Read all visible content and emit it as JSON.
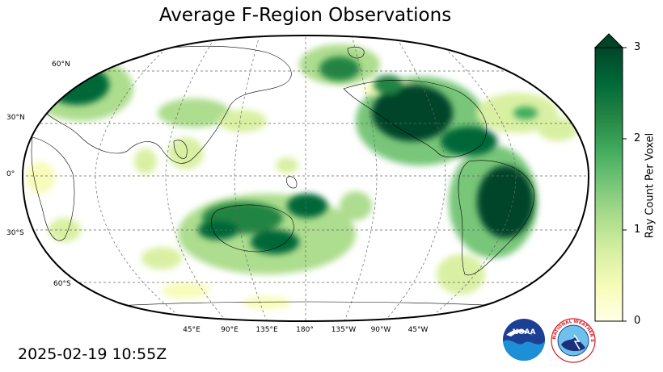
{
  "title": "Average F-Region Observations",
  "timestamp": "2025-02-19 10:55Z",
  "map": {
    "projection": "Robinson, Pacific-centered",
    "lat_labels": [
      "60°N",
      "30°N",
      "0°",
      "30°S",
      "60°S"
    ],
    "lon_labels": [
      "45°E",
      "90°E",
      "135°E",
      "180°",
      "135°W",
      "90°W",
      "45°W"
    ],
    "gridlines": true
  },
  "colorbar": {
    "label": "Ray Count Per Voxel",
    "ticks": [
      "0",
      "1",
      "2",
      "3"
    ],
    "range": [
      0,
      3
    ],
    "extend": "max",
    "colormap": "YlGn",
    "colors": [
      "#ffffe5",
      "#f7fcb9",
      "#d9f0a3",
      "#addd8e",
      "#78c679",
      "#41ab5d",
      "#238443",
      "#006837",
      "#004529"
    ]
  },
  "logos": {
    "noaa": {
      "text": "NOAA"
    },
    "nws": {
      "text": "NATIONAL WEATHER SERVICE"
    }
  }
}
